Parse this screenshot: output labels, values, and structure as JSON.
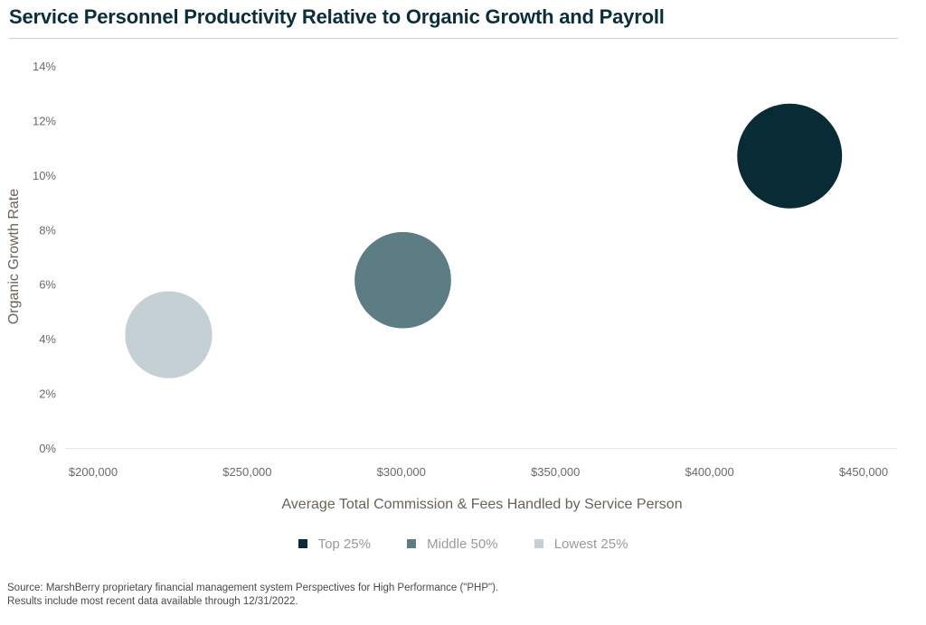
{
  "title": "Service Personnel Productivity Relative to Organic Growth and Payroll",
  "source": {
    "line1": "Source: MarshBerry proprietary financial management system Perspectives for High Performance (\"PHP\").",
    "line2": "Results include most recent data available through 12/31/2022."
  },
  "chart_data": {
    "type": "bubble",
    "xlabel": "Average Total Commission & Fees Handled by Service Person",
    "ylabel": "Organic Growth Rate",
    "xlim": [
      200000,
      450000
    ],
    "ylim": [
      0,
      14
    ],
    "x_ticks": [
      {
        "value": 200000,
        "label": "$200,000"
      },
      {
        "value": 250000,
        "label": "$250,000"
      },
      {
        "value": 300000,
        "label": "$300,000"
      },
      {
        "value": 350000,
        "label": "$350,000"
      },
      {
        "value": 400000,
        "label": "$400,000"
      },
      {
        "value": 450000,
        "label": "$450,000"
      }
    ],
    "y_ticks": [
      {
        "value": 0,
        "label": "0%"
      },
      {
        "value": 2,
        "label": "2%"
      },
      {
        "value": 4,
        "label": "4%"
      },
      {
        "value": 6,
        "label": "6%"
      },
      {
        "value": 8,
        "label": "8%"
      },
      {
        "value": 10,
        "label": "10%"
      },
      {
        "value": 12,
        "label": "12%"
      },
      {
        "value": 14,
        "label": "14%"
      }
    ],
    "grid": false,
    "legend_position": "bottom",
    "series": [
      {
        "name": "Top 25%",
        "x": 426000,
        "y": 10.7,
        "color": "#092b36",
        "size": 1.0
      },
      {
        "name": "Middle 50%",
        "x": 300500,
        "y": 6.15,
        "color": "#5d7d84",
        "size": 0.92
      },
      {
        "name": "Lowest 25%",
        "x": 224500,
        "y": 4.15,
        "color": "#c5d0d4",
        "size": 0.83
      }
    ]
  }
}
